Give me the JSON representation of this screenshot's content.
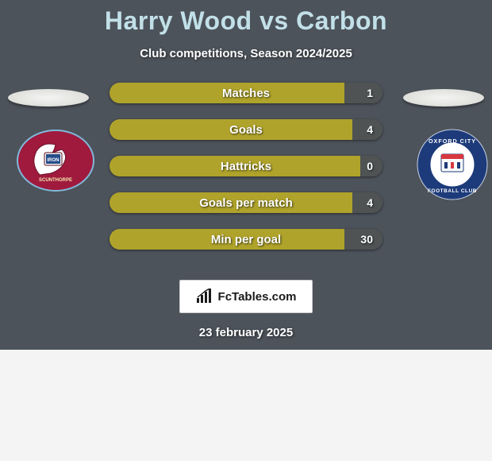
{
  "title": "Harry Wood vs Carbon",
  "subtitle": "Club competitions, Season 2024/2025",
  "date_text": "23 february 2025",
  "site": "FcTables.com",
  "colors": {
    "panel_bg": "#4d535b",
    "title": "#c2e0e8",
    "bar_left": "#afa32b",
    "bar_right": "#4f5353",
    "text_white": "#ffffff"
  },
  "left_team": {
    "name": "Scunthorpe United",
    "crest_primary": "#9f1a3d",
    "crest_secondary": "#7fb9da",
    "crest_accent": "#ffffff"
  },
  "right_team": {
    "name": "Oxford City Football Club",
    "crest_ring": "#1d3b7a",
    "crest_center": "#ffffff",
    "crest_accent": "#d8373f"
  },
  "stats": [
    {
      "label": "Matches",
      "value": "1",
      "left_width_pct": 86
    },
    {
      "label": "Goals",
      "value": "4",
      "left_width_pct": 89
    },
    {
      "label": "Hattricks",
      "value": "0",
      "left_width_pct": 92
    },
    {
      "label": "Goals per match",
      "value": "4",
      "left_width_pct": 89
    },
    {
      "label": "Min per goal",
      "value": "30",
      "left_width_pct": 86
    }
  ]
}
